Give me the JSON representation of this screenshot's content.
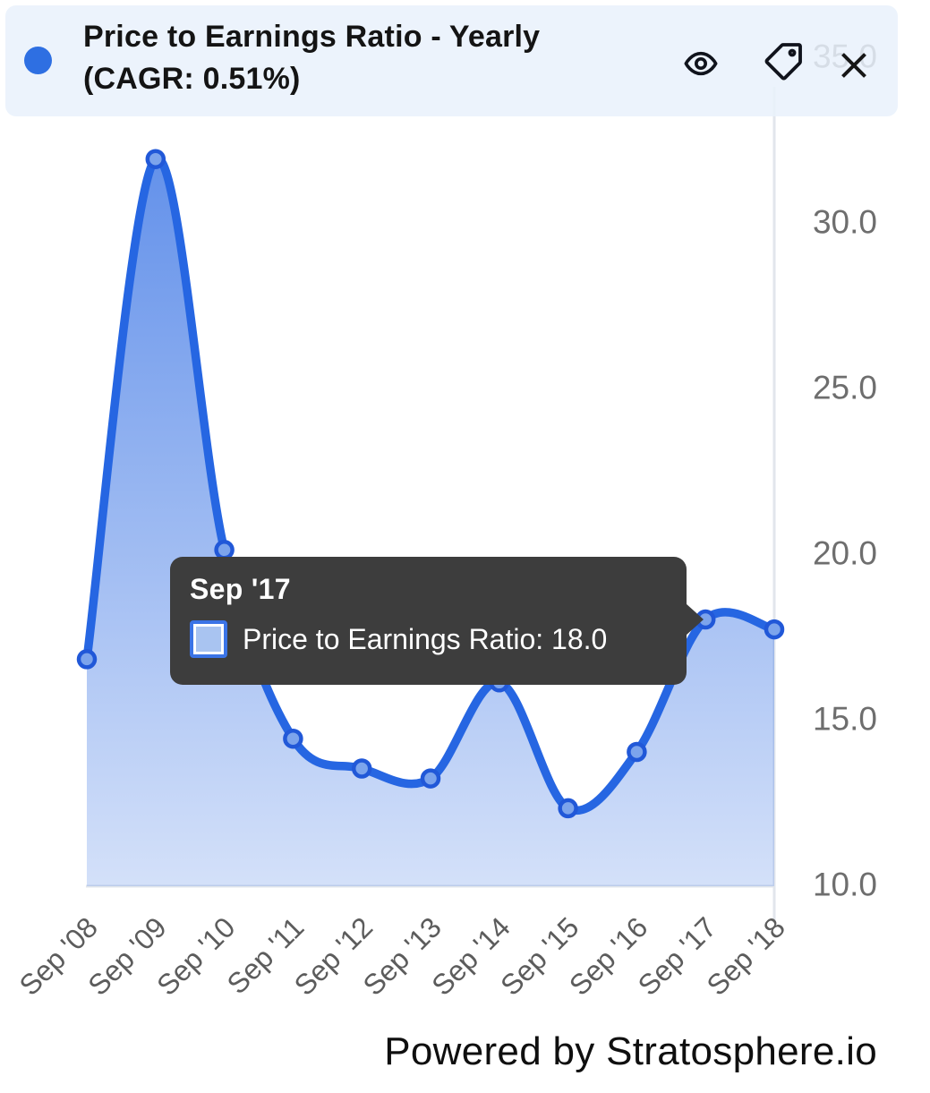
{
  "header": {
    "title_line1": "Price to Earnings Ratio - Yearly",
    "title_line2": "(CAGR: 0.51%)",
    "legend_dot_color": "#2e6fe2",
    "icons": [
      {
        "name": "eye-icon"
      },
      {
        "name": "tag-icon"
      },
      {
        "name": "close-icon"
      }
    ]
  },
  "tooltip": {
    "title": "Sep '17",
    "text": "Price to Earnings Ratio: 18.0",
    "swatch_fill": "#a9c4f1",
    "swatch_border": "#3b74e6",
    "bg": "#3d3d3d"
  },
  "footer": {
    "text": "Powered by Stratosphere.io"
  },
  "colors": {
    "accent": "#2666e2",
    "marker_fill": "#7ca4ec",
    "marker_stroke": "#2158d8",
    "header_bg": "rgba(233,241,252,0.85)",
    "grid": "#e2e6ec",
    "tick": "#6e6e6e",
    "xlabel": "#5c5c5c"
  },
  "chart_data": {
    "type": "area",
    "title": "Price to Earnings Ratio - Yearly",
    "subtitle": "(CAGR: 0.51%)",
    "categories": [
      "Sep '08",
      "Sep '09",
      "Sep '10",
      "Sep '11",
      "Sep '12",
      "Sep '13",
      "Sep '14",
      "Sep '15",
      "Sep '16",
      "Sep '17",
      "Sep '18"
    ],
    "series": [
      {
        "name": "Price to Earnings Ratio",
        "values": [
          16.8,
          31.9,
          20.1,
          14.4,
          13.5,
          13.2,
          16.1,
          12.3,
          14.0,
          18.0,
          17.7
        ]
      }
    ],
    "ylim": [
      10,
      35
    ],
    "ytick_labels": [
      "35.0",
      "30.0",
      "25.0",
      "20.0",
      "15.0",
      "10.0"
    ],
    "xlabel": "",
    "ylabel": "",
    "grid": "single vertical axis line at right edge, no horizontal gridlines",
    "legend_position": "header-dot",
    "curve": "smooth",
    "highlighted_point": {
      "category": "Sep '17",
      "value": 18.0
    }
  }
}
